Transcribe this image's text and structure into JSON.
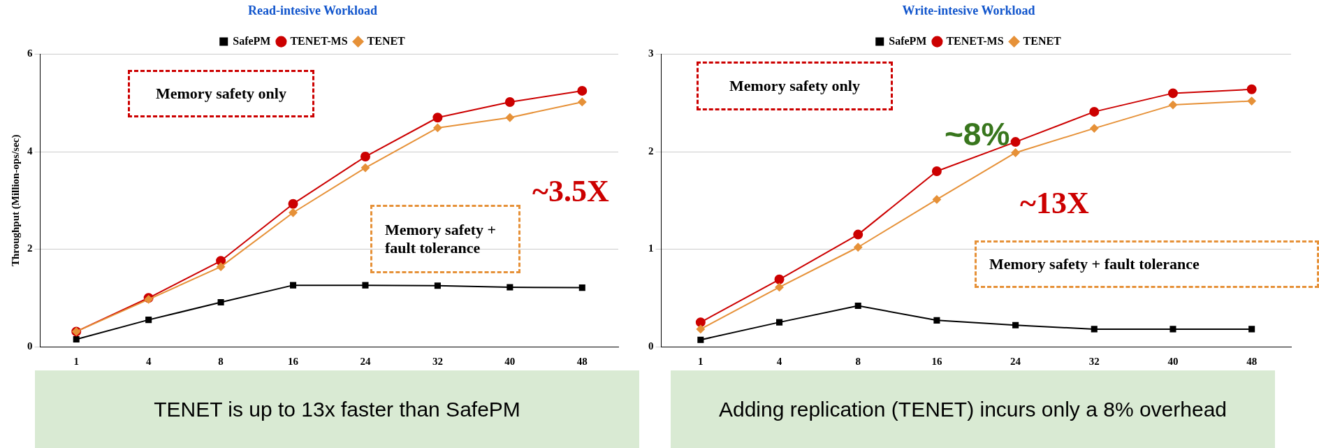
{
  "chart_data": [
    {
      "type": "line",
      "title": "Read-intesive Workload",
      "ylabel": "Throughput (Million-ops/sec)",
      "categories": [
        "1",
        "4",
        "8",
        "16",
        "24",
        "32",
        "40",
        "48"
      ],
      "series": [
        {
          "name": "SafePM",
          "color": "#000000",
          "marker": "square",
          "values": [
            0.15,
            0.55,
            0.91,
            1.26,
            1.26,
            1.25,
            1.22,
            1.21
          ]
        },
        {
          "name": "TENET-MS",
          "color": "#cc0000",
          "marker": "circle",
          "values": [
            0.31,
            1.0,
            1.76,
            2.93,
            3.9,
            4.7,
            5.02,
            5.25
          ]
        },
        {
          "name": "TENET",
          "color": "#e69138",
          "marker": "diamond",
          "values": [
            0.31,
            0.97,
            1.64,
            2.75,
            3.67,
            4.49,
            4.7,
            5.02
          ]
        }
      ],
      "ylim": [
        0,
        6
      ],
      "yticks": [
        0,
        2,
        4,
        6
      ],
      "grid": "y",
      "legend": "top",
      "line_style": "solid",
      "annotations": [
        "Memory safety only",
        "Memory safety + fault tolerance",
        "~3.5X",
        "TENET is up to 13x faster than SafePM"
      ]
    },
    {
      "type": "line",
      "title": "Write-intesive Workload",
      "categories": [
        "1",
        "4",
        "8",
        "16",
        "24",
        "32",
        "40",
        "48"
      ],
      "series": [
        {
          "name": "SafePM",
          "color": "#000000",
          "marker": "square",
          "values": [
            0.07,
            0.25,
            0.42,
            0.27,
            0.22,
            0.18,
            0.18,
            0.18
          ]
        },
        {
          "name": "TENET-MS",
          "color": "#cc0000",
          "marker": "circle",
          "values": [
            0.25,
            0.69,
            1.15,
            1.8,
            2.1,
            2.41,
            2.6,
            2.64
          ]
        },
        {
          "name": "TENET",
          "color": "#e69138",
          "marker": "diamond",
          "values": [
            0.18,
            0.61,
            1.02,
            1.51,
            1.99,
            2.24,
            2.48,
            2.52
          ]
        }
      ],
      "ylim": [
        0,
        3
      ],
      "yticks": [
        0,
        1,
        2,
        3
      ],
      "grid": "y",
      "legend": "top",
      "line_style": "solid",
      "annotations": [
        "Memory safety only",
        "~8%",
        "Memory safety + fault tolerance",
        "~13X",
        "Adding replication (TENET) incurs only a 8% overhead"
      ]
    }
  ]
}
